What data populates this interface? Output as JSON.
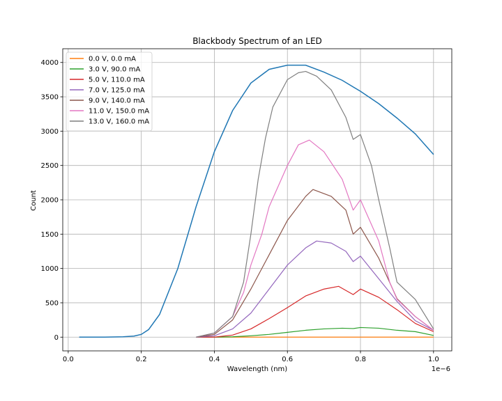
{
  "chart_data": {
    "type": "line",
    "title": "Blackbody Spectrum of an LED",
    "xlabel": "Wavelength (nm)",
    "ylabel": "Count",
    "x_offset_label": "1e−6",
    "xlim": [
      -0.015,
      1.05
    ],
    "ylim": [
      -200,
      4200
    ],
    "x_ticks": [
      0.0,
      0.2,
      0.4,
      0.6,
      0.8,
      1.0
    ],
    "x_tick_labels": [
      "0.0",
      "0.2",
      "0.4",
      "0.6",
      "0.8",
      "1.0"
    ],
    "y_ticks": [
      0,
      500,
      1000,
      1500,
      2000,
      2500,
      3000,
      3500,
      4000
    ],
    "y_tick_labels": [
      "0",
      "500",
      "1000",
      "1500",
      "2000",
      "2500",
      "3000",
      "3500",
      "4000"
    ],
    "grid": true,
    "legend_position": "top-left",
    "blackbody": {
      "color": "#1f77b4",
      "x": [
        0.03,
        0.1,
        0.15,
        0.18,
        0.2,
        0.22,
        0.25,
        0.3,
        0.35,
        0.4,
        0.45,
        0.5,
        0.55,
        0.6,
        0.65,
        0.7,
        0.75,
        0.8,
        0.85,
        0.9,
        0.95,
        1.0
      ],
      "y": [
        0,
        0,
        5,
        15,
        40,
        110,
        330,
        1000,
        1900,
        2700,
        3300,
        3700,
        3900,
        3960,
        3960,
        3860,
        3740,
        3580,
        3400,
        3190,
        2960,
        2660
      ]
    },
    "series": [
      {
        "name": "0.0 V, 0.0 mA",
        "color": "#ff7f0e",
        "x": [
          0.35,
          0.5,
          0.7,
          0.9,
          1.0
        ],
        "y": [
          0,
          0,
          0,
          0,
          0
        ]
      },
      {
        "name": "3.0 V, 90.0 mA",
        "color": "#2ca02c",
        "x": [
          0.35,
          0.4,
          0.45,
          0.5,
          0.55,
          0.6,
          0.65,
          0.7,
          0.75,
          0.78,
          0.8,
          0.85,
          0.9,
          0.95,
          1.0
        ],
        "y": [
          0,
          0,
          5,
          20,
          40,
          70,
          100,
          120,
          130,
          125,
          140,
          130,
          100,
          80,
          25
        ]
      },
      {
        "name": "5.0 V, 110.0 mA",
        "color": "#d62728",
        "x": [
          0.35,
          0.4,
          0.45,
          0.5,
          0.55,
          0.6,
          0.65,
          0.7,
          0.74,
          0.78,
          0.8,
          0.85,
          0.9,
          0.95,
          1.0
        ],
        "y": [
          0,
          0,
          30,
          120,
          270,
          430,
          600,
          700,
          740,
          620,
          700,
          580,
          400,
          200,
          80
        ]
      },
      {
        "name": "7.0 V, 125.0 mA",
        "color": "#9467bd",
        "x": [
          0.35,
          0.4,
          0.45,
          0.5,
          0.55,
          0.6,
          0.65,
          0.68,
          0.72,
          0.76,
          0.78,
          0.8,
          0.85,
          0.9,
          0.95,
          1.0
        ],
        "y": [
          0,
          20,
          120,
          350,
          700,
          1050,
          1300,
          1400,
          1370,
          1250,
          1100,
          1180,
          850,
          520,
          240,
          100
        ]
      },
      {
        "name": "9.0 V, 140.0 mA",
        "color": "#8c564b",
        "x": [
          0.35,
          0.4,
          0.45,
          0.5,
          0.53,
          0.55,
          0.6,
          0.65,
          0.67,
          0.72,
          0.76,
          0.78,
          0.8,
          0.85,
          0.9,
          0.95,
          1.0
        ],
        "y": [
          0,
          40,
          250,
          700,
          1000,
          1200,
          1700,
          2050,
          2150,
          2050,
          1850,
          1500,
          1600,
          1150,
          560,
          300,
          100
        ]
      },
      {
        "name": "11.0 V, 150.0 mA",
        "color": "#e377c2",
        "x": [
          0.35,
          0.4,
          0.45,
          0.48,
          0.5,
          0.53,
          0.55,
          0.6,
          0.63,
          0.66,
          0.7,
          0.75,
          0.78,
          0.8,
          0.85,
          0.88,
          0.9,
          0.95,
          1.0
        ],
        "y": [
          0,
          60,
          300,
          650,
          1050,
          1500,
          1900,
          2500,
          2800,
          2870,
          2700,
          2300,
          1850,
          2000,
          1400,
          800,
          550,
          300,
          100
        ]
      },
      {
        "name": "13.0 V, 160.0 mA",
        "color": "#7f7f7f",
        "x": [
          0.35,
          0.4,
          0.45,
          0.48,
          0.5,
          0.52,
          0.54,
          0.56,
          0.6,
          0.63,
          0.65,
          0.68,
          0.72,
          0.76,
          0.78,
          0.8,
          0.83,
          0.85,
          0.88,
          0.9,
          0.95,
          1.0
        ],
        "y": [
          0,
          60,
          300,
          800,
          1500,
          2300,
          2900,
          3350,
          3750,
          3850,
          3870,
          3800,
          3600,
          3200,
          2880,
          2950,
          2500,
          2000,
          1300,
          800,
          550,
          120
        ]
      }
    ]
  }
}
